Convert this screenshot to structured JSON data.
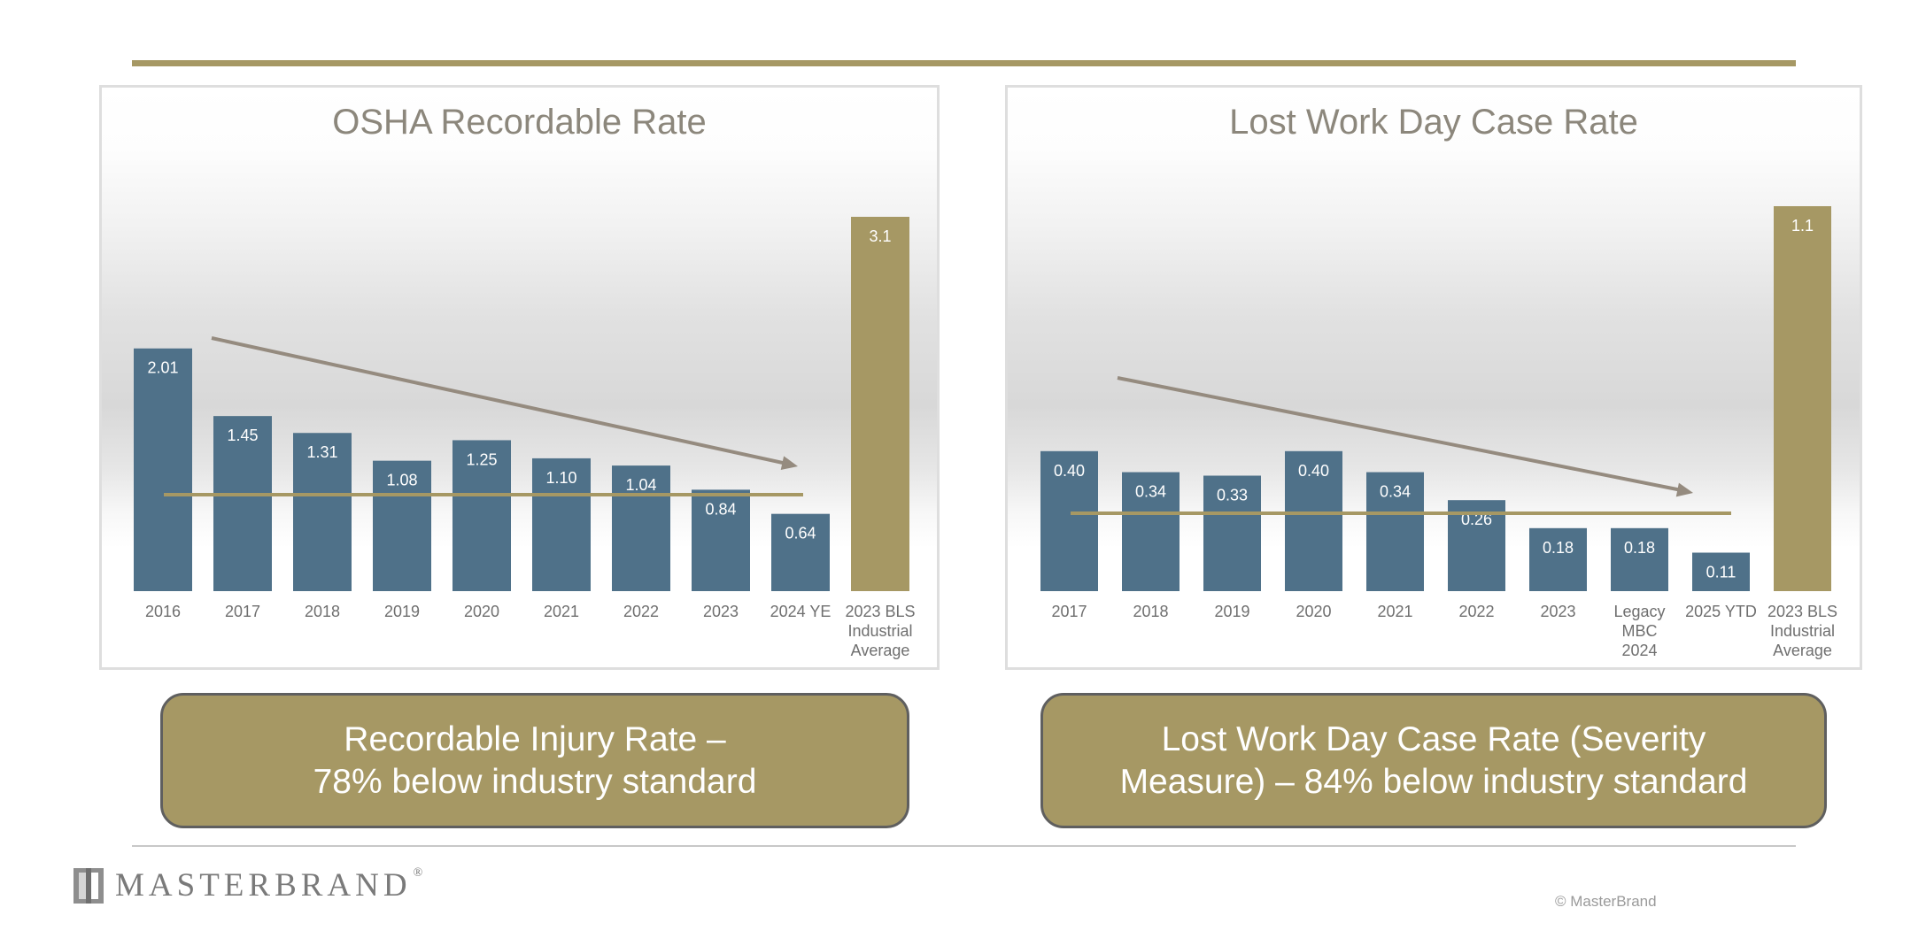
{
  "colors": {
    "bar": "#4f7189",
    "bls_bar": "#a69864",
    "trend": "#958b7f",
    "avg_line": "#a69864",
    "label_text": "#ffffff",
    "axis_text": "#6f6f6f"
  },
  "chart_data": [
    {
      "type": "bar",
      "title": "OSHA Recordable Rate",
      "categories": [
        "2016",
        "2017",
        "2018",
        "2019",
        "2020",
        "2021",
        "2022",
        "2023",
        "2024 YE",
        "2023 BLS\nIndustrial\nAverage"
      ],
      "values": [
        2.01,
        1.45,
        1.31,
        1.08,
        1.25,
        1.1,
        1.04,
        0.84,
        0.64,
        3.1
      ],
      "value_labels": [
        "2.01",
        "1.45",
        "1.31",
        "1.08",
        "1.25",
        "1.10",
        "1.04",
        "0.84",
        "0.64",
        "3.1"
      ],
      "highlight_category": "2023 BLS\nIndustrial\nAverage",
      "average_line": 0.78,
      "trend_arrow": true,
      "ylim": [
        0,
        3.1
      ]
    },
    {
      "type": "bar",
      "title": "Lost Work Day Case Rate",
      "categories": [
        "2017",
        "2018",
        "2019",
        "2020",
        "2021",
        "2022",
        "2023",
        "Legacy\nMBC\n2024",
        "2025 YTD",
        "2023 BLS\nIndustrial\nAverage"
      ],
      "values": [
        0.4,
        0.34,
        0.33,
        0.4,
        0.34,
        0.26,
        0.18,
        0.18,
        0.11,
        1.1
      ],
      "value_labels": [
        "0.40",
        "0.34",
        "0.33",
        "0.40",
        "0.34",
        "0.26",
        "0.18",
        "0.18",
        "0.11",
        "1.1"
      ],
      "highlight_category": "2023 BLS\nIndustrial\nAverage",
      "average_line": 0.22,
      "trend_arrow": true,
      "ylim": [
        0,
        1.1
      ]
    }
  ],
  "callouts": {
    "left": [
      "Recordable Injury Rate –",
      "78% below industry standard"
    ],
    "right": [
      "Lost Work Day Case Rate (Severity",
      "Measure) – 84% below industry standard"
    ]
  },
  "footer": {
    "brand": "MASTERBRAND",
    "trademark": "®",
    "copyright": "© MasterBrand"
  },
  "icons": {
    "logo": "cabinet-door-icon"
  }
}
